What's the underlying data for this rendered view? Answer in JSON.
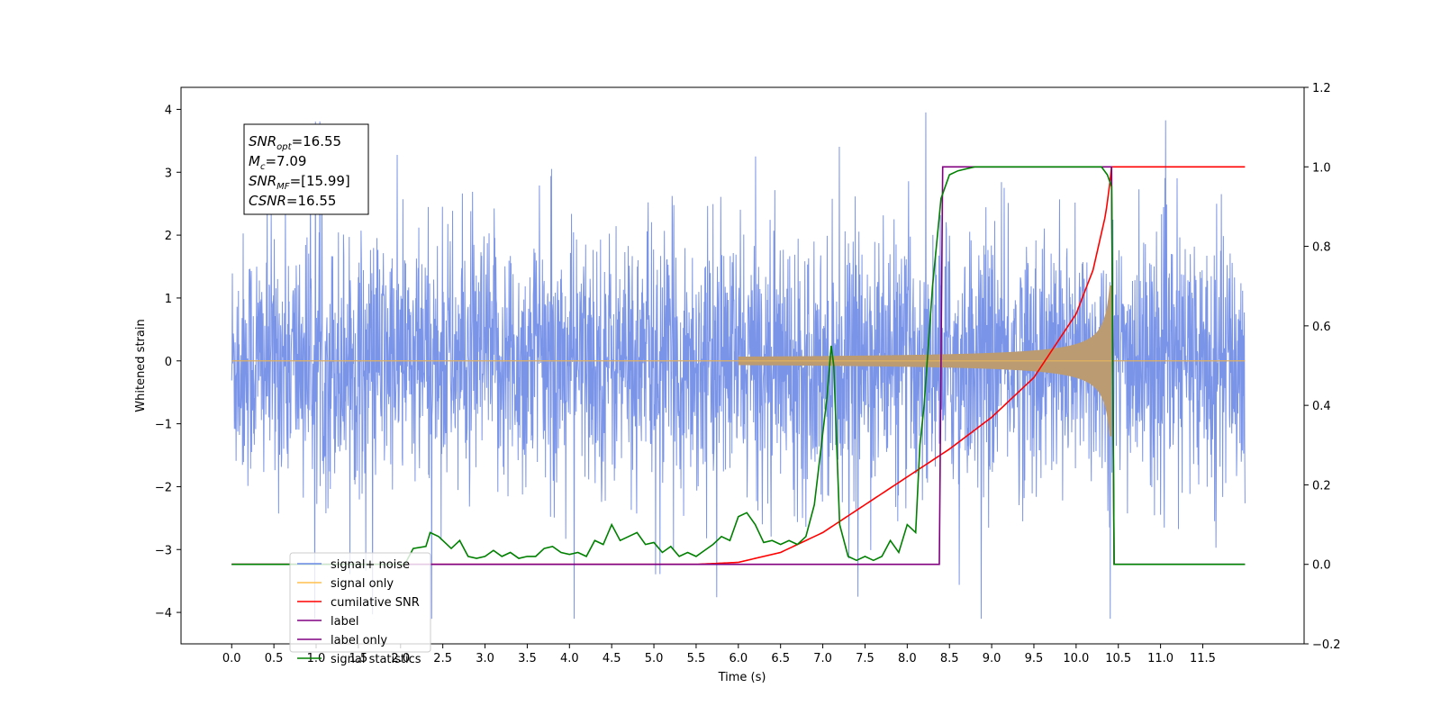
{
  "chart_data": {
    "type": "line",
    "xlabel": "Time (s)",
    "ylabel": "Whitened strain",
    "xlim": [
      -0.6,
      12.7
    ],
    "ylim_left": [
      -4.5,
      4.35
    ],
    "ylim_right": [
      -0.2,
      1.2
    ],
    "x_ticks": [
      0.0,
      0.5,
      1.0,
      1.5,
      2.0,
      2.5,
      3.0,
      3.5,
      4.0,
      4.5,
      5.0,
      5.5,
      6.0,
      6.5,
      7.0,
      7.5,
      8.0,
      8.5,
      9.0,
      9.5,
      10.0,
      10.5,
      11.0,
      11.5
    ],
    "x_tick_labels": [
      "0.0",
      "0.5",
      "1.0",
      "1.5",
      "2.0",
      "2.5",
      "3.0",
      "3.5",
      "4.0",
      "4.5",
      "5.0",
      "5.5",
      "6.0",
      "6.5",
      "7.0",
      "7.5",
      "8.0",
      "8.5",
      "9.0",
      "9.5",
      "10.0",
      "10.5",
      "11.0",
      "11.5"
    ],
    "y_ticks_left": [
      -4,
      -3,
      -2,
      -1,
      0,
      1,
      2,
      3,
      4
    ],
    "y_tick_labels_left": [
      "−4",
      "−3",
      "−2",
      "−1",
      "0",
      "1",
      "2",
      "3",
      "4"
    ],
    "y_ticks_right": [
      -0.2,
      0.0,
      0.2,
      0.4,
      0.6,
      0.8,
      1.0,
      1.2
    ],
    "y_tick_labels_right": [
      "−0.2",
      "0.0",
      "0.2",
      "0.4",
      "0.6",
      "0.8",
      "1.0",
      "1.2"
    ],
    "legend_placement": "lower-left",
    "series": [
      {
        "name": "signal+ noise",
        "axis": "left",
        "color": "#6b88e6",
        "description_values": {
          "x_range": [
            0.0,
            12.0
          ],
          "amplitude_typical": 1.6,
          "peak_max": 3.95,
          "peak_min": -4.1
        }
      },
      {
        "name": "signal only",
        "axis": "left",
        "color": "#ffc04d",
        "chirp": {
          "x_start": 6.0,
          "x_merger": 10.42,
          "amp_at_start": 0.01,
          "amp_at_merger": 1.2
        }
      },
      {
        "name": "cumilative SNR",
        "axis": "right",
        "color": "#ff0000",
        "x": [
          0.0,
          5.5,
          6.0,
          6.5,
          7.0,
          7.5,
          8.0,
          8.5,
          9.0,
          9.5,
          10.0,
          10.2,
          10.35,
          10.4,
          10.42,
          12.0
        ],
        "y": [
          0.0,
          0.0,
          0.005,
          0.03,
          0.08,
          0.15,
          0.22,
          0.29,
          0.37,
          0.47,
          0.63,
          0.74,
          0.88,
          0.96,
          1.0,
          1.0
        ]
      },
      {
        "name": "label",
        "axis": "right",
        "color": "#800080",
        "x": [
          0.0,
          8.38,
          8.42,
          10.42,
          10.45,
          12.0
        ],
        "y": [
          0.0,
          0.0,
          1.0,
          1.0,
          0.0,
          0.0
        ]
      },
      {
        "name": "label only",
        "axis": "right",
        "color": "#800080",
        "hidden_behind_legend": true
      },
      {
        "name": "signal statistics",
        "axis": "right",
        "color": "#008000",
        "x": [
          0.0,
          2.05,
          2.15,
          2.3,
          2.35,
          2.45,
          2.6,
          2.7,
          2.8,
          2.9,
          3.0,
          3.1,
          3.2,
          3.3,
          3.4,
          3.5,
          3.6,
          3.7,
          3.8,
          3.9,
          4.0,
          4.1,
          4.2,
          4.3,
          4.4,
          4.5,
          4.6,
          4.7,
          4.8,
          4.9,
          5.0,
          5.1,
          5.2,
          5.3,
          5.4,
          5.5,
          5.6,
          5.7,
          5.8,
          5.9,
          6.0,
          6.1,
          6.2,
          6.3,
          6.4,
          6.5,
          6.6,
          6.7,
          6.8,
          6.9,
          7.0,
          7.05,
          7.1,
          7.13,
          7.2,
          7.3,
          7.4,
          7.5,
          7.6,
          7.7,
          7.8,
          7.9,
          8.0,
          8.1,
          8.15,
          8.2,
          8.3,
          8.4,
          8.5,
          8.6,
          8.7,
          8.8,
          9.0,
          9.5,
          10.0,
          10.3,
          10.37,
          10.42,
          10.45,
          12.0
        ],
        "y": [
          0.0,
          0.0,
          0.04,
          0.045,
          0.08,
          0.07,
          0.04,
          0.06,
          0.02,
          0.015,
          0.02,
          0.035,
          0.02,
          0.03,
          0.015,
          0.02,
          0.02,
          0.04,
          0.045,
          0.03,
          0.025,
          0.03,
          0.02,
          0.06,
          0.05,
          0.1,
          0.06,
          0.07,
          0.08,
          0.05,
          0.055,
          0.03,
          0.045,
          0.02,
          0.03,
          0.02,
          0.035,
          0.05,
          0.07,
          0.06,
          0.12,
          0.13,
          0.1,
          0.055,
          0.06,
          0.05,
          0.06,
          0.05,
          0.07,
          0.15,
          0.33,
          0.42,
          0.55,
          0.5,
          0.1,
          0.02,
          0.01,
          0.02,
          0.01,
          0.02,
          0.06,
          0.03,
          0.1,
          0.08,
          0.3,
          0.4,
          0.7,
          0.92,
          0.98,
          0.99,
          0.995,
          1.0,
          1.0,
          1.0,
          1.0,
          1.0,
          0.98,
          0.95,
          0.0,
          0.0
        ]
      }
    ],
    "legend_entries": [
      "signal+ noise",
      "signal only",
      "cumilative SNR",
      "label",
      "label only",
      "signal statistics"
    ],
    "annotation": {
      "lines": [
        {
          "main": "SNR",
          "sub": "opt",
          "rest": "=16.55"
        },
        {
          "main": "M",
          "sub": "c",
          "rest": "=7.09"
        },
        {
          "main": "SNR",
          "sub": "MF",
          "rest": "=[15.99]"
        },
        {
          "main": "CSNR",
          "sub": "",
          "rest": "=16.55"
        }
      ]
    }
  }
}
